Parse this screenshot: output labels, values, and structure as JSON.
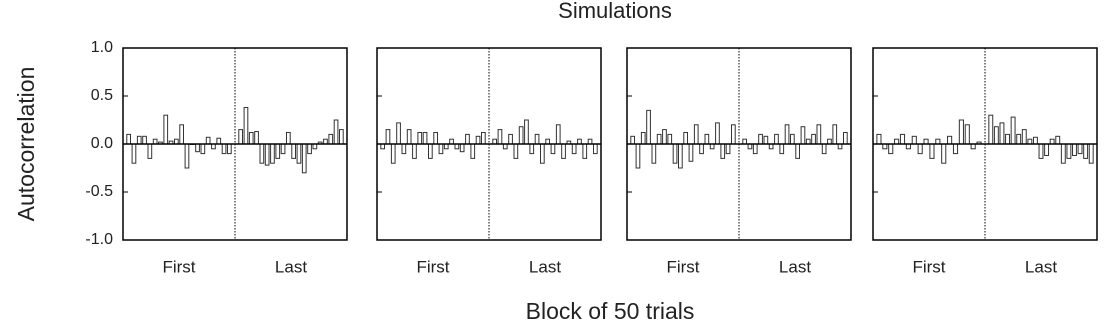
{
  "chart_data": {
    "type": "bar",
    "title": "Simulations",
    "ylabel": "Autocorrelation",
    "xlabel": "Block of 50 trials",
    "ylim": [
      -1,
      1
    ],
    "yticks": [
      {
        "value": -1,
        "label": "-1.0"
      },
      {
        "value": -0.5,
        "label": "-0.5"
      },
      {
        "value": 0,
        "label": "0.0"
      },
      {
        "value": 0.5,
        "label": "0.5"
      },
      {
        "value": 1,
        "label": "1.0"
      }
    ],
    "panels": [
      {
        "groups": [
          {
            "label": "First",
            "values": [
              0.1,
              -0.2,
              0.08,
              0.08,
              -0.15,
              0.05,
              0.02,
              0.3,
              0.03,
              0.05,
              0.2,
              -0.25,
              0.0,
              -0.08,
              -0.1,
              0.07,
              -0.05,
              0.06,
              -0.1,
              -0.1
            ]
          },
          {
            "label": "Last",
            "values": [
              0.15,
              0.38,
              0.12,
              0.13,
              -0.2,
              -0.22,
              -0.2,
              -0.15,
              -0.1,
              0.12,
              -0.15,
              -0.2,
              -0.3,
              -0.1,
              -0.05,
              0.02,
              0.05,
              0.1,
              0.25,
              0.15
            ]
          }
        ]
      },
      {
        "groups": [
          {
            "label": "First",
            "values": [
              -0.05,
              0.15,
              -0.2,
              0.22,
              -0.1,
              0.15,
              -0.15,
              0.12,
              0.12,
              -0.15,
              0.12,
              -0.1,
              -0.05,
              0.05,
              -0.05,
              -0.08,
              0.1,
              -0.15,
              0.08,
              0.12
            ]
          },
          {
            "label": "Last",
            "values": [
              0.05,
              0.15,
              -0.05,
              0.1,
              -0.15,
              0.18,
              0.25,
              -0.1,
              0.1,
              -0.2,
              0.05,
              -0.1,
              0.2,
              -0.15,
              0.03,
              -0.1,
              0.05,
              -0.15,
              0.05,
              -0.1
            ]
          }
        ]
      },
      {
        "groups": [
          {
            "label": "First",
            "values": [
              0.08,
              -0.25,
              0.12,
              0.35,
              -0.2,
              0.1,
              0.15,
              0.1,
              -0.2,
              -0.25,
              0.12,
              -0.18,
              0.2,
              -0.1,
              0.1,
              -0.05,
              0.22,
              -0.15,
              -0.1,
              0.2
            ]
          },
          {
            "label": "Last",
            "values": [
              0.05,
              -0.05,
              -0.1,
              0.1,
              0.08,
              -0.05,
              0.1,
              -0.1,
              0.2,
              0.1,
              -0.15,
              0.18,
              0.05,
              0.1,
              0.2,
              -0.1,
              0.05,
              0.2,
              -0.05,
              0.12
            ]
          }
        ]
      },
      {
        "groups": [
          {
            "label": "First",
            "values": [
              0.1,
              -0.05,
              -0.1,
              0.05,
              0.1,
              -0.05,
              0.08,
              -0.1,
              0.05,
              -0.15,
              0.05,
              -0.2,
              0.08,
              -0.1,
              0.25,
              0.2,
              -0.05,
              0.02
            ]
          },
          {
            "label": "Last",
            "values": [
              0.3,
              0.18,
              0.22,
              0.1,
              0.28,
              0.1,
              0.15,
              0.05,
              0.07,
              -0.15,
              -0.12,
              0.05,
              0.08,
              -0.2,
              -0.15,
              -0.12,
              -0.1,
              -0.15,
              -0.2
            ]
          }
        ]
      }
    ]
  }
}
